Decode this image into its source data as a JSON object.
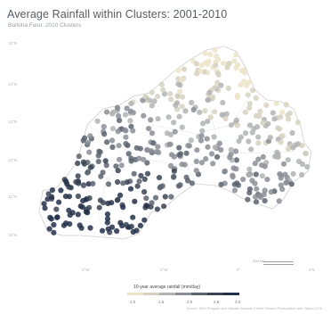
{
  "title": "Average Rainfall within Clusters: 2001-2010",
  "subtitle": "Burkina Faso: 2010 Clusters",
  "lat_labels": [
    "15°N",
    "14°N",
    "13°N",
    "12°N",
    "11°N",
    "10°N"
  ],
  "lon_labels": [
    "4°W",
    "2°W",
    "0°",
    "2°E"
  ],
  "scale_label": "200 km",
  "legend": {
    "title": "10-year average rainfall (mm/day)",
    "ticks": [
      "1.0",
      "1.5",
      "2.0",
      "2.5",
      "3.0"
    ],
    "colors": [
      "#ece4c9",
      "#d6d2c2",
      "#b2b3b3",
      "#8b8f96",
      "#5c6470",
      "#3a4452",
      "#23304a"
    ]
  },
  "source": "Source: DHS Program and Climate Hazards Center Infrared Precipitation with Station (CHI",
  "colors": {
    "point_fill": "#2b3443",
    "boundary": "#cfcfcf"
  }
}
